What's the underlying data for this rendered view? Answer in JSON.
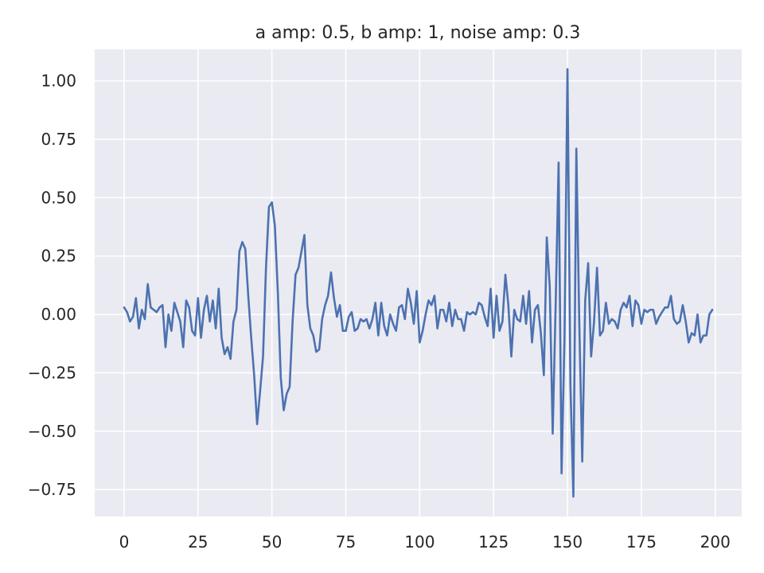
{
  "chart_data": {
    "type": "line",
    "title": "a amp: 0.5,   b amp: 1,   noise amp: 0.3",
    "xlabel": "",
    "ylabel": "",
    "xlim": [
      -9.95,
      208.95
    ],
    "ylim": [
      -0.865,
      1.135
    ],
    "grid": true,
    "x_ticks": [
      0,
      25,
      50,
      75,
      100,
      125,
      150,
      175,
      200
    ],
    "x_tick_labels": [
      "0",
      "25",
      "50",
      "75",
      "100",
      "125",
      "150",
      "175",
      "200"
    ],
    "y_ticks": [
      -0.75,
      -0.5,
      -0.25,
      0.0,
      0.25,
      0.5,
      0.75,
      1.0
    ],
    "y_tick_labels": [
      "−0.75",
      "−0.50",
      "−0.25",
      "0.00",
      "0.25",
      "0.50",
      "0.75",
      "1.00"
    ],
    "series": [
      {
        "color": "#4c72b0",
        "x_start": 0,
        "x_step": 1,
        "values": [
          0.03,
          0.01,
          -0.03,
          -0.01,
          0.07,
          -0.06,
          0.02,
          -0.02,
          0.13,
          0.03,
          0.02,
          0.01,
          0.03,
          0.04,
          -0.14,
          0.0,
          -0.07,
          0.05,
          0.01,
          -0.03,
          -0.14,
          0.06,
          0.03,
          -0.07,
          -0.09,
          0.07,
          -0.1,
          0.02,
          0.08,
          -0.03,
          0.06,
          -0.06,
          0.11,
          -0.1,
          -0.17,
          -0.14,
          -0.19,
          -0.03,
          0.02,
          0.27,
          0.31,
          0.28,
          0.08,
          -0.1,
          -0.26,
          -0.47,
          -0.33,
          -0.18,
          0.2,
          0.46,
          0.48,
          0.38,
          0.1,
          -0.27,
          -0.41,
          -0.34,
          -0.31,
          -0.03,
          0.17,
          0.2,
          0.27,
          0.34,
          0.04,
          -0.06,
          -0.09,
          -0.16,
          -0.15,
          -0.02,
          0.04,
          0.08,
          0.18,
          0.07,
          -0.01,
          0.04,
          -0.07,
          -0.07,
          -0.01,
          0.01,
          -0.07,
          -0.06,
          -0.02,
          -0.03,
          -0.02,
          -0.06,
          -0.02,
          0.05,
          -0.09,
          0.05,
          -0.05,
          -0.09,
          0.0,
          -0.04,
          -0.07,
          0.03,
          0.04,
          -0.02,
          0.11,
          0.05,
          -0.04,
          0.1,
          -0.12,
          -0.07,
          0.0,
          0.06,
          0.04,
          0.08,
          -0.06,
          0.02,
          0.02,
          -0.03,
          0.05,
          -0.05,
          0.02,
          -0.02,
          -0.02,
          -0.07,
          0.01,
          0.0,
          0.01,
          0.0,
          0.05,
          0.04,
          -0.01,
          -0.05,
          0.11,
          -0.1,
          0.08,
          -0.07,
          -0.03,
          0.17,
          0.04,
          -0.18,
          0.02,
          -0.02,
          -0.03,
          0.08,
          -0.04,
          0.1,
          -0.12,
          0.02,
          0.04,
          -0.08,
          -0.26,
          0.33,
          0.12,
          -0.51,
          0.04,
          0.65,
          -0.68,
          -0.1,
          1.05,
          -0.3,
          -0.78,
          0.71,
          -0.04,
          -0.63,
          0.06,
          0.22,
          -0.18,
          -0.03,
          0.2,
          -0.09,
          -0.07,
          0.05,
          -0.04,
          -0.02,
          -0.03,
          -0.06,
          0.02,
          0.05,
          0.03,
          0.08,
          -0.05,
          0.06,
          0.04,
          -0.04,
          0.02,
          0.01,
          0.02,
          0.02,
          -0.04,
          -0.01,
          0.01,
          0.03,
          0.03,
          0.08,
          -0.02,
          -0.04,
          -0.03,
          0.04,
          -0.03,
          -0.12,
          -0.08,
          -0.09,
          0.0,
          -0.12,
          -0.09,
          -0.09,
          0.0,
          0.02
        ]
      }
    ]
  }
}
